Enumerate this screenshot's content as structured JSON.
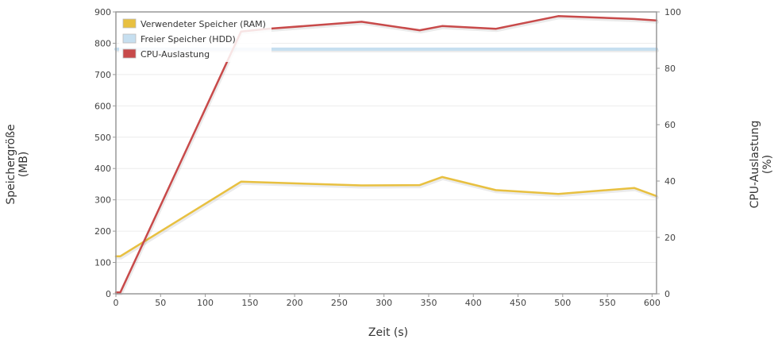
{
  "chart_data": {
    "type": "line",
    "xlabel": "Zeit (s)",
    "ylabel_left": [
      "Speichergröße",
      "(MB)"
    ],
    "ylabel_right": [
      "CPU-Auslastung",
      "(%)"
    ],
    "xlim": [
      0,
      605
    ],
    "ylim_left": [
      0,
      900
    ],
    "ylim_right": [
      0,
      100
    ],
    "x_ticks": [
      0,
      50,
      100,
      150,
      200,
      250,
      300,
      350,
      400,
      450,
      500,
      550,
      600
    ],
    "y_ticks_left": [
      0,
      100,
      200,
      300,
      400,
      500,
      600,
      700,
      800,
      900
    ],
    "y_ticks_right": [
      0,
      20,
      40,
      60,
      80,
      100
    ],
    "grid": true,
    "legend_position": "top-left",
    "series": [
      {
        "name": "Verwendeter Speicher (RAM)",
        "axis": "left",
        "color": "#e8c040",
        "x": [
          0,
          5,
          140,
          275,
          340,
          365,
          425,
          495,
          580,
          605
        ],
        "y": [
          120,
          120,
          358,
          346,
          347,
          373,
          331,
          319,
          338,
          312
        ]
      },
      {
        "name": "Freier Speicher (HDD)",
        "axis": "left",
        "color": "#c6dff0",
        "x": [
          0,
          605
        ],
        "y": [
          781,
          781
        ]
      },
      {
        "name": "CPU-Auslastung",
        "axis": "right",
        "color": "#c84a4a",
        "x": [
          0,
          5,
          140,
          170,
          275,
          340,
          365,
          425,
          495,
          580,
          605
        ],
        "y": [
          0.5,
          0.5,
          93,
          94,
          96.5,
          93.5,
          95,
          94,
          98.5,
          97.5,
          97
        ]
      }
    ]
  }
}
